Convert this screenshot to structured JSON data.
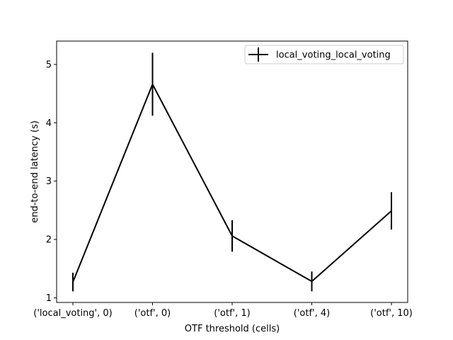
{
  "chart_data": {
    "type": "line",
    "xlabel": "OTF threshold (cells)",
    "ylabel": "end-to-end latency (s)",
    "categories": [
      "('local_voting', 0)",
      "('otf', 0)",
      "('otf', 1)",
      "('otf', 4)",
      "('otf', 10)"
    ],
    "ylim": [
      0.92,
      5.4
    ],
    "yticks": [
      1,
      2,
      3,
      4,
      5
    ],
    "legend_position": "upper right",
    "series": [
      {
        "name": "local_voting_local_voting",
        "color": "#000000",
        "values": [
          1.27,
          4.66,
          2.06,
          1.28,
          2.49
        ],
        "errors": [
          0.16,
          0.54,
          0.27,
          0.17,
          0.32
        ]
      }
    ]
  }
}
